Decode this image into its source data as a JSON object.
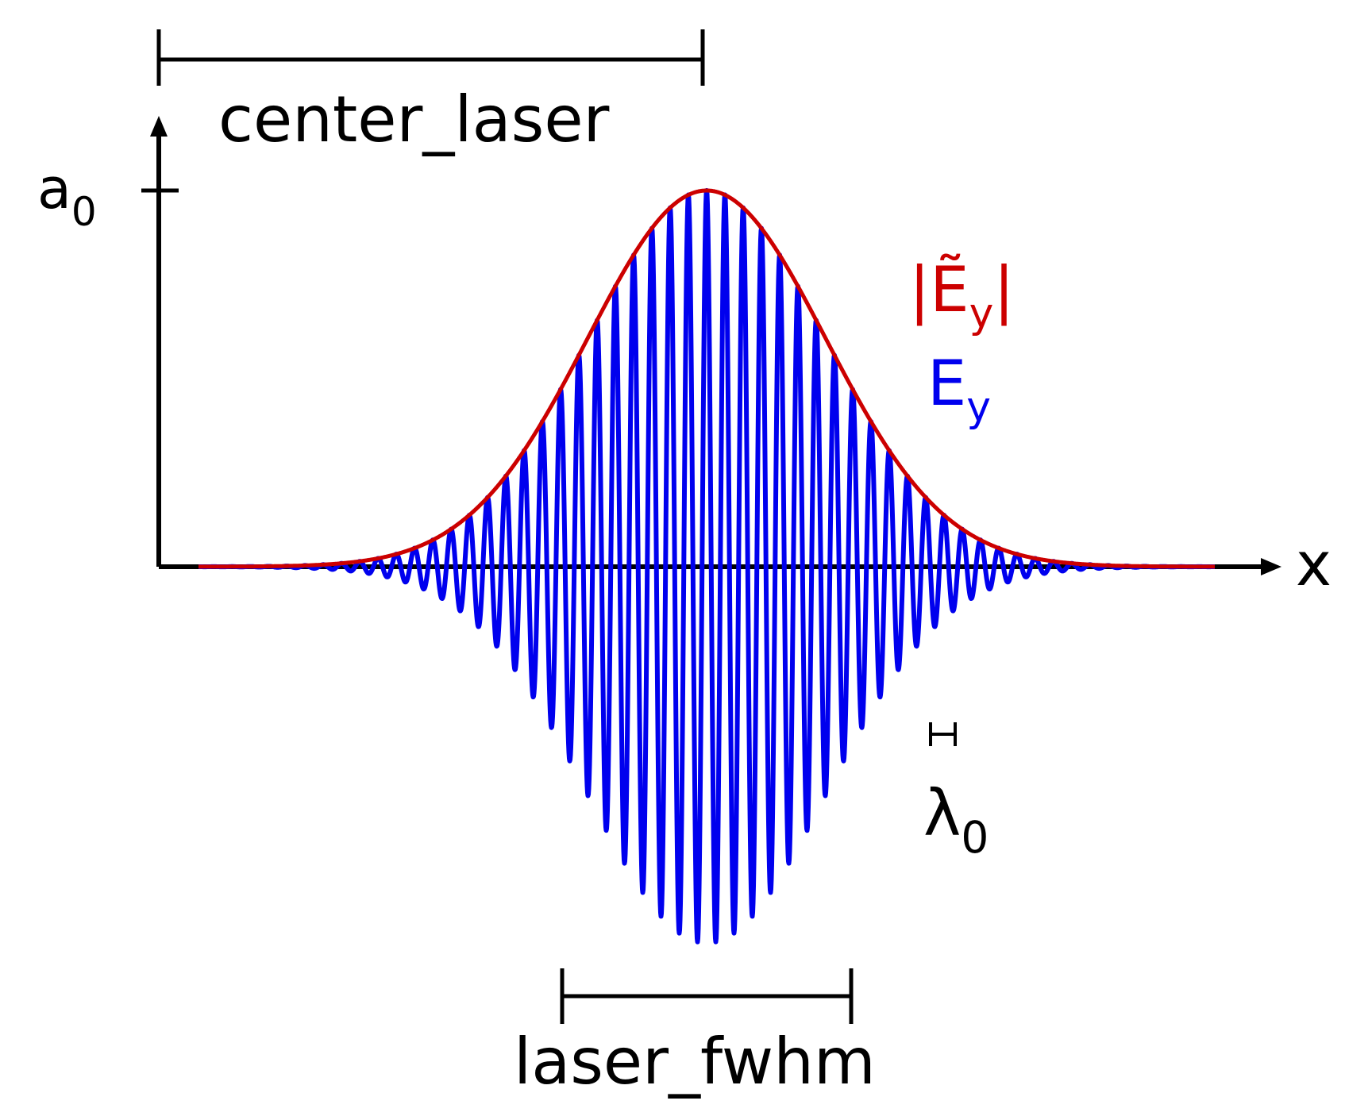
{
  "diagram": {
    "labels": {
      "center_laser": "center_laser",
      "laser_fwhm": "laser_fwhm",
      "amplitude": "a",
      "amplitude_sub": "0",
      "x_axis": "x",
      "envelope_main": "|Ẽ",
      "envelope_sub": "y",
      "envelope_close": "|",
      "field_main": "E",
      "field_sub": "y",
      "wavelength": "λ",
      "wavelength_sub": "0"
    },
    "colors": {
      "axis": "#000000",
      "envelope": "#cc0000",
      "field": "#0000ee"
    }
  }
}
